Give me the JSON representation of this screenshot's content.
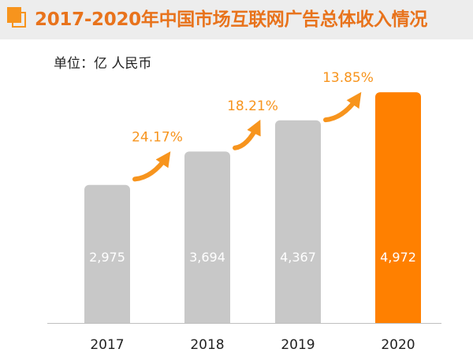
{
  "title": "2017-2020年中国市场互联网广告总体收入情况",
  "unit_label": "单位：亿 人民币",
  "colors": {
    "title_text": "#e8731c",
    "accent": "#f7941d",
    "bar_default": "#c8c8c8",
    "bar_highlight": "#ff8000",
    "title_band": "#ededed"
  },
  "chart_data": {
    "type": "bar",
    "title": "2017-2020年中国市场互联网广告总体收入情况",
    "ylabel": "单位：亿 人民币",
    "xlabel": "",
    "categories": [
      "2017",
      "2018",
      "2019",
      "2020"
    ],
    "values": [
      2975,
      3694,
      4367,
      4972
    ],
    "value_labels": [
      "2,975",
      "3,694",
      "4,367",
      "4,972"
    ],
    "highlight_index": 3,
    "growth_rates": [
      {
        "from": "2017",
        "to": "2018",
        "label": "24.17%"
      },
      {
        "from": "2018",
        "to": "2019",
        "label": "18.21%"
      },
      {
        "from": "2019",
        "to": "2020",
        "label": "13.85%"
      }
    ],
    "ylim": [
      0,
      5000
    ],
    "grid": false,
    "legend": "none"
  }
}
